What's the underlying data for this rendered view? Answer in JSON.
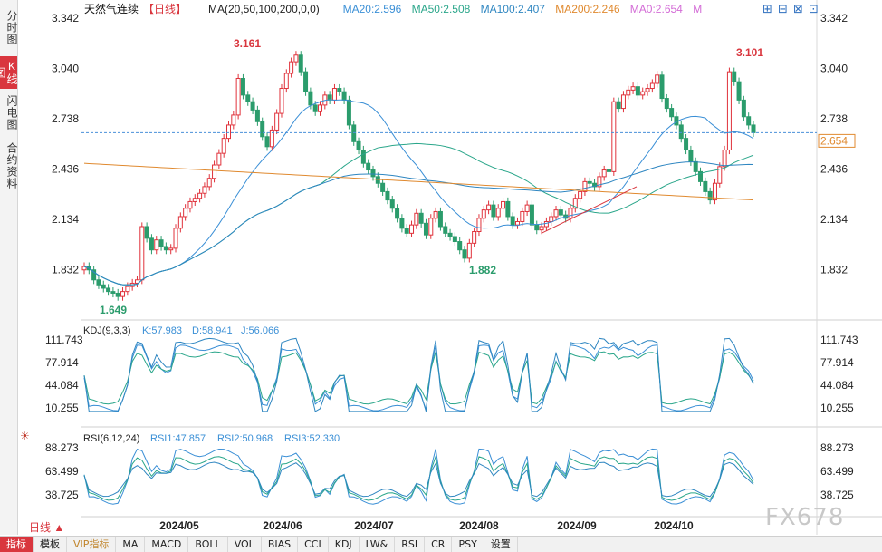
{
  "sidebar": [
    {
      "label": "分时图",
      "active": false
    },
    {
      "label": "K线图",
      "active": true
    },
    {
      "label": "闪电图",
      "active": false
    },
    {
      "label": "合约资料",
      "active": false
    }
  ],
  "header": {
    "title": "天然气连续",
    "period_tag": "【日线】",
    "ma_legend": [
      {
        "text": "MA(20,50,100,200,0,0)",
        "color": "#222222"
      },
      {
        "text": "MA20:2.596",
        "color": "#3a8fd6"
      },
      {
        "text": "MA50:2.508",
        "color": "#2aa68a"
      },
      {
        "text": "MA100:2.407",
        "color": "#2e86c1"
      },
      {
        "text": "MA200:2.246",
        "color": "#e08a30"
      },
      {
        "text": "MA0:2.654",
        "color": "#d36bd6"
      },
      {
        "text": "M",
        "color": "#d36bd6"
      }
    ]
  },
  "main_axis": {
    "ticks": [
      "3.342",
      "3.040",
      "2.738",
      "2.436",
      "2.134",
      "1.832"
    ],
    "current_price": "2.654",
    "annotations": {
      "high1": "3.161",
      "high2": "3.101",
      "low1": "1.649",
      "low2": "1.882"
    }
  },
  "kdj": {
    "params": "KDJ(9,3,3)",
    "k": "K:57.983",
    "d": "D:58.941",
    "j": "J:56.066",
    "ticks": [
      "111.743",
      "77.914",
      "44.084",
      "10.255"
    ]
  },
  "rsi": {
    "params": "RSI(6,12,24)",
    "r1": "RSI1:47.857",
    "r2": "RSI2:50.968",
    "r3": "RSI3:52.330",
    "ticks": [
      "88.273",
      "63.499",
      "38.725"
    ]
  },
  "x_labels": [
    "2024/05",
    "2024/06",
    "2024/07",
    "2024/08",
    "2024/09",
    "2024/10"
  ],
  "period_label": "日线 ▲",
  "bottom_tabs": [
    "指标",
    "模板",
    "VIP指标",
    "MA",
    "MACD",
    "BOLL",
    "VOL",
    "BIAS",
    "CCI",
    "KDJ",
    "LW&",
    "RSI",
    "CR",
    "PSY",
    "设置"
  ],
  "watermark": "FX678",
  "colors": {
    "up": "#e0323b",
    "down": "#2b9c6c",
    "ma20": "#3a8fd6",
    "ma50": "#2aa68a",
    "ma100": "#2e86c1",
    "ma200": "#e08a30",
    "price_line": "#4a90d9"
  },
  "chart_data": {
    "type": "candlestick",
    "symbol": "天然气连续",
    "period": "日线",
    "price_range": [
      1.6,
      3.342
    ],
    "current_price": 2.654,
    "period_high": 3.161,
    "period_low": 1.649,
    "annotated_high_2": 3.101,
    "annotated_low_2": 1.882,
    "closes": [
      1.85,
      1.83,
      1.77,
      1.74,
      1.72,
      1.7,
      1.69,
      1.67,
      1.7,
      1.73,
      1.75,
      1.77,
      2.09,
      2.02,
      1.95,
      2.01,
      1.97,
      1.95,
      1.96,
      2.08,
      2.15,
      2.2,
      2.24,
      2.26,
      2.29,
      2.33,
      2.38,
      2.46,
      2.53,
      2.62,
      2.7,
      2.76,
      2.98,
      2.88,
      2.84,
      2.79,
      2.72,
      2.63,
      2.57,
      2.67,
      2.77,
      2.92,
      3.01,
      3.08,
      3.12,
      3.02,
      2.9,
      2.82,
      2.78,
      2.82,
      2.88,
      2.85,
      2.92,
      2.9,
      2.85,
      2.7,
      2.6,
      2.55,
      2.47,
      2.43,
      2.39,
      2.35,
      2.3,
      2.25,
      2.2,
      2.14,
      2.08,
      2.05,
      2.1,
      2.17,
      2.11,
      2.04,
      2.14,
      2.18,
      2.09,
      2.05,
      2.03,
      2.0,
      1.95,
      1.9,
      1.99,
      2.06,
      2.14,
      2.19,
      2.22,
      2.15,
      2.2,
      2.24,
      2.15,
      2.1,
      2.12,
      2.18,
      2.22,
      2.1,
      2.07,
      2.09,
      2.12,
      2.15,
      2.19,
      2.16,
      2.14,
      2.2,
      2.26,
      2.3,
      2.36,
      2.35,
      2.33,
      2.39,
      2.43,
      2.42,
      2.84,
      2.8,
      2.88,
      2.91,
      2.93,
      2.88,
      2.9,
      2.92,
      2.95,
      3.0,
      2.86,
      2.8,
      2.75,
      2.7,
      2.62,
      2.55,
      2.48,
      2.42,
      2.36,
      2.3,
      2.25,
      2.35,
      2.45,
      2.55,
      3.02,
      2.96,
      2.85,
      2.75,
      2.7,
      2.654
    ],
    "ma": {
      "MA20": 2.596,
      "MA50": 2.508,
      "MA100": 2.407,
      "MA200": 2.246
    },
    "kdj": {
      "K": 57.983,
      "D": 58.941,
      "J": 56.066,
      "range": [
        10.255,
        111.743
      ]
    },
    "rsi": {
      "RSI1": 47.857,
      "RSI2": 50.968,
      "RSI3": 52.33,
      "range": [
        38.725,
        88.273
      ]
    }
  }
}
